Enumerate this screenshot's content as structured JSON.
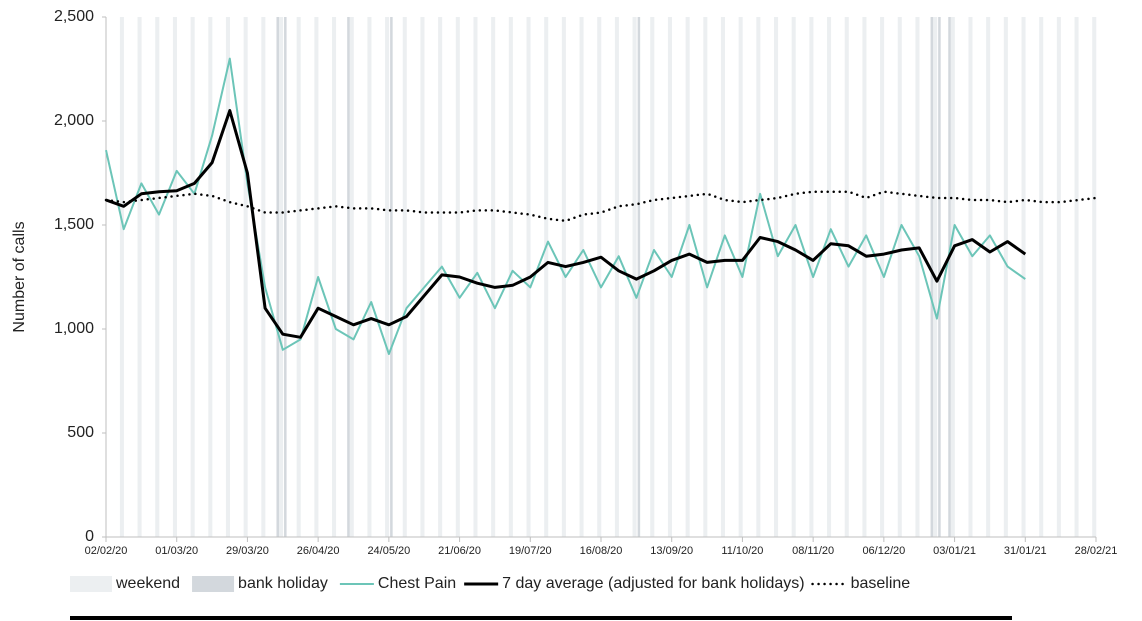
{
  "chart_data": {
    "type": "line",
    "y_label": "Number of calls",
    "x": [
      "02/02/20",
      "09/02/20",
      "16/02/20",
      "23/02/20",
      "01/03/20",
      "08/03/20",
      "15/03/20",
      "22/03/20",
      "29/03/20",
      "05/04/20",
      "12/04/20",
      "19/04/20",
      "26/04/20",
      "03/05/20",
      "10/05/20",
      "17/05/20",
      "24/05/20",
      "31/05/20",
      "07/06/20",
      "14/06/20",
      "21/06/20",
      "28/06/20",
      "05/07/20",
      "12/07/20",
      "19/07/20",
      "26/07/20",
      "02/08/20",
      "09/08/20",
      "16/08/20",
      "23/08/20",
      "30/08/20",
      "06/09/20",
      "13/09/20",
      "20/09/20",
      "27/09/20",
      "04/10/20",
      "11/10/20",
      "18/10/20",
      "25/10/20",
      "01/11/20",
      "08/11/20",
      "15/11/20",
      "22/11/20",
      "29/11/20",
      "06/12/20",
      "13/12/20",
      "20/12/20",
      "27/12/20",
      "03/01/21",
      "10/01/21",
      "17/01/21",
      "24/01/21",
      "31/01/21",
      "07/02/21",
      "14/02/21",
      "21/02/21",
      "28/02/21"
    ],
    "series": [
      {
        "name": "Chest Pain",
        "color": "#6cc5b8",
        "width": 2,
        "style": "solid",
        "values": [
          1860,
          1480,
          1700,
          1550,
          1760,
          1650,
          1930,
          2300,
          1700,
          1200,
          900,
          950,
          1250,
          1000,
          950,
          1130,
          880,
          1100,
          1200,
          1300,
          1150,
          1270,
          1100,
          1280,
          1200,
          1420,
          1250,
          1380,
          1200,
          1350,
          1150,
          1380,
          1250,
          1500,
          1200,
          1450,
          1250,
          1650,
          1350,
          1500,
          1250,
          1480,
          1300,
          1450,
          1250,
          1500,
          1350,
          1050,
          1500,
          1350,
          1450,
          1300,
          1240,
          null,
          null,
          null,
          null
        ]
      },
      {
        "name": "7 day average (adjusted for bank holidays)",
        "color": "#000000",
        "width": 3,
        "style": "solid",
        "values": [
          1620,
          1590,
          1650,
          1660,
          1665,
          1700,
          1800,
          2050,
          1750,
          1100,
          975,
          960,
          1100,
          1060,
          1020,
          1050,
          1020,
          1060,
          1160,
          1260,
          1250,
          1220,
          1200,
          1210,
          1250,
          1320,
          1300,
          1320,
          1345,
          1280,
          1240,
          1280,
          1330,
          1360,
          1320,
          1330,
          1330,
          1440,
          1420,
          1380,
          1330,
          1410,
          1400,
          1350,
          1360,
          1380,
          1390,
          1230,
          1400,
          1430,
          1370,
          1420,
          1360,
          null,
          null,
          null,
          null
        ]
      },
      {
        "name": "baseline",
        "color": "#000000",
        "width": 2.5,
        "style": "dotted",
        "values": [
          1620,
          1610,
          1620,
          1630,
          1640,
          1650,
          1640,
          1610,
          1590,
          1560,
          1560,
          1570,
          1580,
          1590,
          1580,
          1580,
          1570,
          1570,
          1560,
          1560,
          1560,
          1570,
          1570,
          1560,
          1550,
          1530,
          1520,
          1550,
          1560,
          1590,
          1600,
          1620,
          1630,
          1640,
          1650,
          1620,
          1610,
          1620,
          1630,
          1650,
          1660,
          1660,
          1660,
          1630,
          1660,
          1650,
          1640,
          1630,
          1630,
          1620,
          1620,
          1610,
          1620,
          1610,
          1610,
          1620,
          1630
        ]
      }
    ],
    "shading": [
      {
        "name": "weekend",
        "color": "#eceff1"
      },
      {
        "name": "bank holiday",
        "color": "#d3d8dd",
        "dates": [
          "10/04/20",
          "13/04/20",
          "08/05/20",
          "25/05/20",
          "31/08/20",
          "25/12/20",
          "28/12/20",
          "01/01/21"
        ]
      }
    ],
    "xlim": [
      "02/02/20",
      "28/02/21"
    ],
    "xticks": [
      "02/02/20",
      "01/03/20",
      "29/03/20",
      "26/04/20",
      "24/05/20",
      "21/06/20",
      "19/07/20",
      "16/08/20",
      "13/09/20",
      "11/10/20",
      "08/11/20",
      "06/12/20",
      "03/01/21",
      "31/01/21",
      "28/02/21"
    ],
    "ylim": [
      0,
      2500
    ],
    "yticks": [
      0,
      {
        "value": 500,
        "label": "500"
      },
      {
        "value": 1000,
        "label": "1,000"
      },
      {
        "value": 1500,
        "label": "1,500"
      },
      {
        "value": 2000,
        "label": "2,000"
      },
      {
        "value": 2500,
        "label": "2,500"
      }
    ]
  }
}
